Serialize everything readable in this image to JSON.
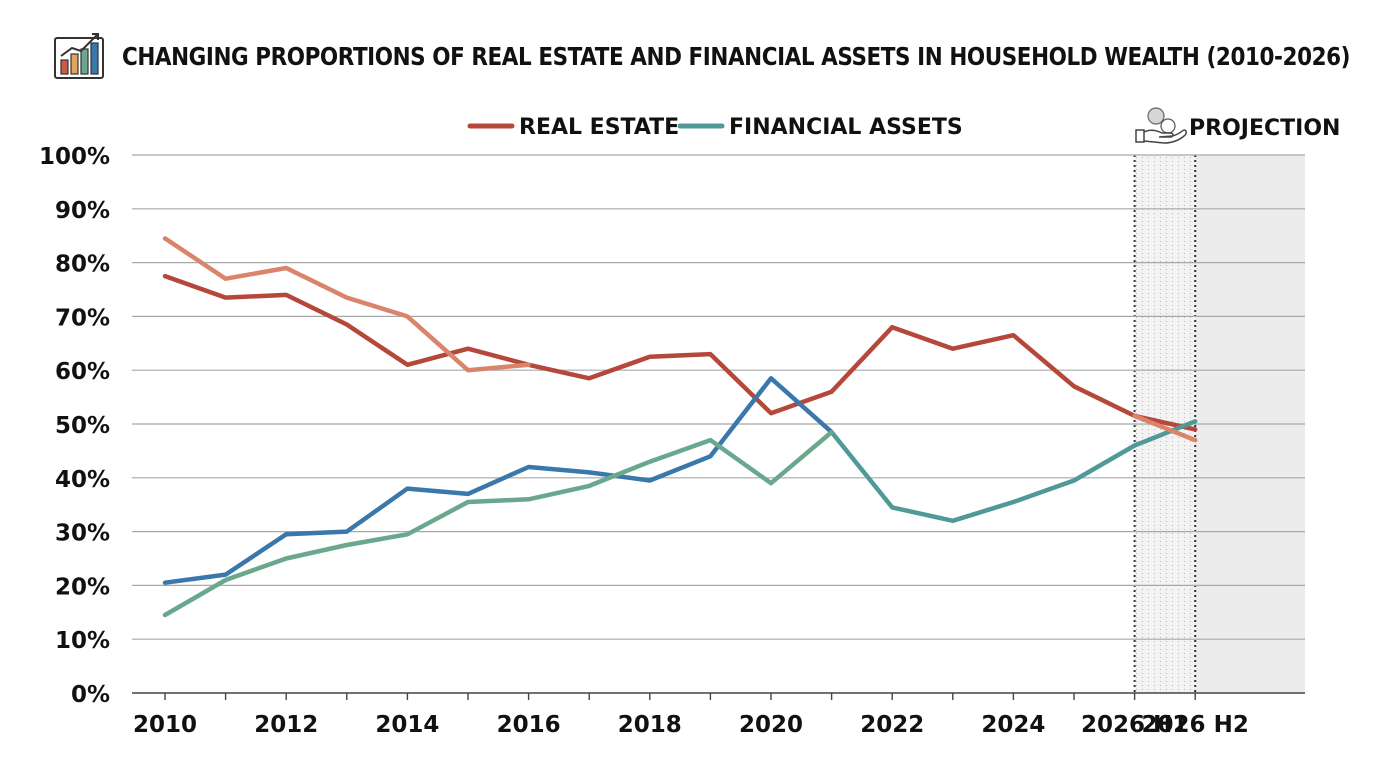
{
  "chart_title": "CHANGING PROPORTIONS OF REAL ESTATE AND FINANCIAL ASSETS IN HOUSEHOLD WEALTH (2010-2026)",
  "icons": {
    "title": "bar-chart-trend-icon",
    "projection": "hand-with-coins-icon"
  },
  "chart_data": {
    "type": "line",
    "title": "CHANGING PROPORTIONS OF REAL ESTATE AND FINANCIAL ASSETS IN HOUSEHOLD WEALTH (2010-2026)",
    "xlabel": "",
    "ylabel": "",
    "x": [
      "2010",
      "2011",
      "2012",
      "2013",
      "2014",
      "2015",
      "2016",
      "2017",
      "2018",
      "2019",
      "2020",
      "2021",
      "2022",
      "2023",
      "2024",
      "2025",
      "2026 H1",
      "2026 H2"
    ],
    "x_tick_labels": [
      "2010",
      "2012",
      "2014",
      "2016",
      "2018",
      "2020",
      "2022",
      "2024",
      "2026 H1",
      "2026 H2"
    ],
    "y_tick_labels": [
      "0%",
      "10%",
      "20%",
      "30%",
      "40%",
      "50%",
      "60%",
      "70%",
      "80%",
      "90%",
      "100%"
    ],
    "ylim": [
      0,
      100
    ],
    "grid": true,
    "legend_position": "top-center",
    "projection_label": "PROJECTION",
    "projection_range": [
      "2026 H1",
      "2026 H2"
    ],
    "series": [
      {
        "name": "REAL ESTATE",
        "legend": true,
        "color": "#B5483A",
        "values": [
          77.5,
          73.5,
          74,
          68.5,
          61,
          64,
          61,
          58.5,
          62.5,
          63,
          52,
          56,
          68,
          64,
          66.5,
          57,
          51.5,
          49
        ]
      },
      {
        "name": "FINANCIAL ASSETS",
        "legend": true,
        "color": "#4F9A97",
        "values": [
          null,
          null,
          null,
          null,
          null,
          null,
          null,
          null,
          null,
          null,
          null,
          48.5,
          34.5,
          32,
          35.5,
          39.5,
          46,
          50.5
        ]
      },
      {
        "legend": false,
        "color": "#D9846B",
        "values": [
          84.5,
          77,
          79,
          73.5,
          70,
          60,
          61,
          null,
          null,
          null,
          null,
          null,
          null,
          null,
          null,
          null,
          51.5,
          47
        ]
      },
      {
        "legend": false,
        "color": "#3A78AC",
        "values": [
          20.5,
          22,
          29.5,
          30,
          38,
          37,
          42,
          41,
          39.5,
          44,
          58.5,
          48.5,
          null,
          null,
          null,
          null,
          null,
          null
        ]
      },
      {
        "legend": false,
        "color": "#6AA88E",
        "values": [
          14.5,
          21,
          25,
          27.5,
          29.5,
          35.5,
          36,
          38.5,
          43,
          47,
          39,
          48.5,
          null,
          null,
          null,
          null,
          null,
          null
        ]
      }
    ]
  }
}
